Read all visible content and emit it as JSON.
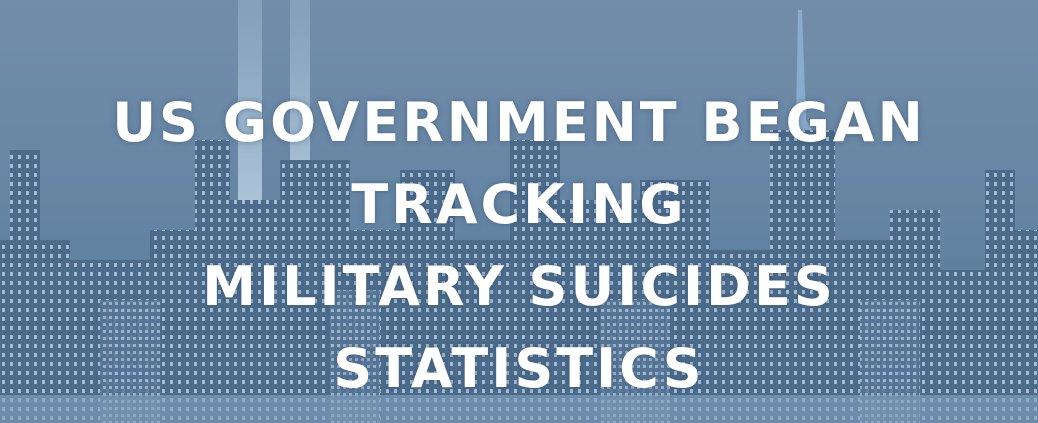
{
  "heading": {
    "lines": [
      "US GOVERNMENT BEGAN",
      "TRACKING",
      "MILITARY SUICIDES",
      "STATISTICS"
    ]
  }
}
